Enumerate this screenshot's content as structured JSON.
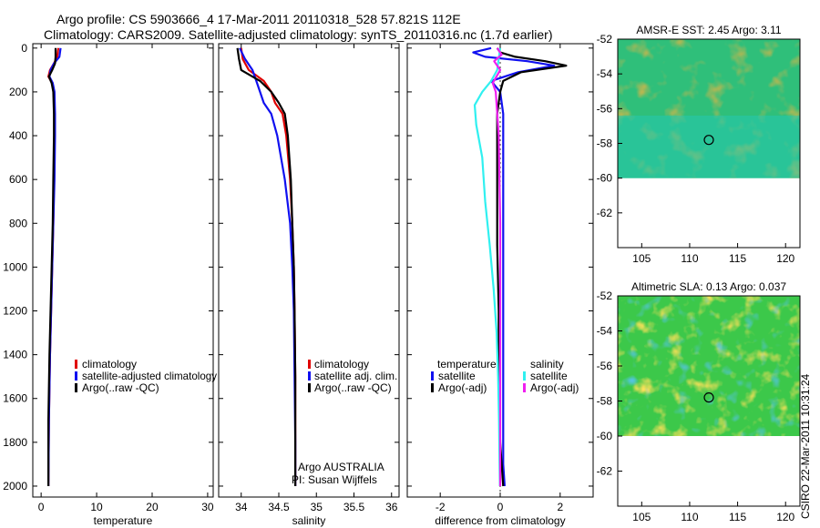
{
  "title_line1": "Argo profile: CS 5903666_4 17-Mar-2011 20110318_528 57.821S 112E",
  "title_line2": "Climatology: CARS2009. Satellite-adjusted climatology: synTS_20110316.nc (1.7d earlier)",
  "side_label": "CSIRO 22-Mar-2011 10:31:24",
  "colors": {
    "red": "#e00000",
    "blue": "#1010f0",
    "black": "#000000",
    "cyan": "#30f0f0",
    "magenta": "#f020f0"
  },
  "chart_data": [
    {
      "type": "line",
      "xlabel": "temperature",
      "xlim": [
        -1.5,
        31
      ],
      "ylim": [
        2050,
        -20
      ],
      "xticks": [
        0,
        10,
        20,
        30
      ],
      "yticks": [
        0,
        200,
        400,
        600,
        800,
        1000,
        1200,
        1400,
        1600,
        1800,
        2000
      ],
      "legend": [
        "climatology",
        "satellite-adjusted climatology",
        "Argo(..raw -QC)"
      ],
      "series": [
        {
          "name": "climatology",
          "color": "red",
          "x": [
            3.1,
            2.9,
            2.3,
            1.6,
            1.3,
            2.0,
            2.3,
            2.4,
            2.4,
            2.3,
            2.2,
            2.0,
            1.8,
            1.6,
            1.4,
            1.3
          ],
          "y": [
            0,
            40,
            70,
            100,
            130,
            160,
            200,
            300,
            400,
            600,
            800,
            1000,
            1200,
            1400,
            1700,
            2000
          ]
        },
        {
          "name": "satellite-adjusted climatology",
          "color": "blue",
          "x": [
            3.5,
            3.3,
            2.3,
            1.7,
            1.5,
            2.1,
            2.4,
            2.5,
            2.5,
            2.4,
            2.2,
            2.0,
            1.8,
            1.6,
            1.4,
            1.3
          ],
          "y": [
            0,
            40,
            70,
            100,
            130,
            160,
            200,
            300,
            400,
            600,
            800,
            1000,
            1200,
            1400,
            1700,
            2000
          ]
        },
        {
          "name": "Argo(..raw -QC)",
          "color": "black",
          "x": [
            2.6,
            2.6,
            2.5,
            2.0,
            1.4,
            1.9,
            2.2,
            2.3,
            2.3,
            2.2,
            2.1,
            1.9,
            1.7,
            1.5,
            1.3,
            1.3
          ],
          "y": [
            0,
            40,
            70,
            100,
            130,
            160,
            200,
            300,
            400,
            600,
            800,
            1000,
            1200,
            1400,
            1700,
            2000
          ]
        }
      ]
    },
    {
      "type": "line",
      "xlabel": "salinity",
      "xlim": [
        33.7,
        36.1
      ],
      "ylim": [
        2050,
        -20
      ],
      "xticks": [
        34,
        34.5,
        35,
        35.5,
        36
      ],
      "xticklabels": [
        "34",
        "34.5",
        "35",
        "35.5",
        "36"
      ],
      "legend": [
        "climatology",
        "satellite adj. clim.",
        "Argo(..raw -QC)"
      ],
      "annotation": [
        "Argo AUSTRALIA",
        "PI: Susan Wijffels"
      ],
      "series": [
        {
          "name": "climatology",
          "color": "red",
          "x": [
            34.0,
            34.02,
            34.1,
            34.3,
            34.4,
            34.45,
            34.55,
            34.6,
            34.65,
            34.68,
            34.7,
            34.71,
            34.72,
            34.72,
            34.72
          ],
          "y": [
            0,
            50,
            100,
            150,
            200,
            250,
            300,
            400,
            600,
            800,
            1000,
            1200,
            1500,
            1800,
            2000
          ]
        },
        {
          "name": "satellite adj. clim.",
          "color": "blue",
          "x": [
            33.98,
            34.05,
            34.15,
            34.2,
            34.25,
            34.3,
            34.4,
            34.48,
            34.58,
            34.65,
            34.68,
            34.7,
            34.71,
            34.72,
            34.72
          ],
          "y": [
            0,
            50,
            100,
            150,
            200,
            250,
            300,
            400,
            600,
            800,
            1000,
            1200,
            1500,
            1800,
            2000
          ]
        },
        {
          "name": "Argo(..raw -QC)",
          "color": "black",
          "x": [
            33.95,
            33.97,
            34.0,
            34.25,
            34.4,
            34.5,
            34.58,
            34.62,
            34.66,
            34.68,
            34.7,
            34.71,
            34.72,
            34.72,
            34.72
          ],
          "y": [
            0,
            50,
            100,
            150,
            200,
            250,
            300,
            400,
            600,
            800,
            1000,
            1200,
            1500,
            1800,
            2000
          ]
        }
      ]
    },
    {
      "type": "line",
      "xlabel": "difference from climatology",
      "xlim": [
        -3.1,
        3.1
      ],
      "ylim": [
        2050,
        -20
      ],
      "xticks": [
        -2,
        0,
        2
      ],
      "legend_temperature_title": "temperature",
      "legend_salinity_title": "salinity",
      "legend_temperature": [
        "satellite",
        "Argo(-adj)"
      ],
      "legend_salinity": [
        "satellite",
        "Argo(-adj)"
      ],
      "series": [
        {
          "name": "temperature satellite",
          "color": "blue",
          "x": [
            -0.3,
            -0.9,
            -0.5,
            0.9,
            1.8,
            0.6,
            -0.3,
            0.0,
            0.1,
            0.1,
            0.1,
            0.1,
            0.1,
            0.1,
            0.1,
            0.15
          ],
          "y": [
            0,
            20,
            40,
            60,
            80,
            110,
            150,
            200,
            300,
            600,
            900,
            1200,
            1500,
            1800,
            1900,
            2000
          ]
        },
        {
          "name": "temperature Argo(-adj)",
          "color": "black",
          "x": [
            -0.1,
            0.0,
            0.5,
            1.5,
            2.2,
            0.7,
            0.1,
            0.0,
            -0.1,
            -0.1,
            -0.1,
            -0.05,
            -0.05,
            0.0,
            0.05,
            0.1
          ],
          "y": [
            0,
            20,
            40,
            60,
            80,
            110,
            150,
            200,
            300,
            600,
            900,
            1200,
            1500,
            1800,
            1900,
            2000
          ]
        },
        {
          "name": "salinity satellite",
          "color": "cyan",
          "x": [
            0.0,
            -0.1,
            -0.3,
            -0.6,
            -0.85,
            -0.8,
            -0.6,
            -0.5,
            -0.35,
            -0.22,
            -0.12,
            -0.07,
            -0.04,
            -0.02,
            -0.01
          ],
          "y": [
            0,
            100,
            150,
            200,
            260,
            350,
            500,
            700,
            900,
            1100,
            1300,
            1500,
            1700,
            1900,
            2000
          ]
        },
        {
          "name": "salinity Argo(-adj)",
          "color": "magenta",
          "x": [
            -0.1,
            0.05,
            -0.2,
            0.0,
            -0.25,
            -0.15,
            -0.05,
            0.0,
            0.0,
            0.0,
            0.0
          ],
          "y": [
            0,
            30,
            60,
            100,
            160,
            200,
            400,
            800,
            1200,
            1600,
            2000
          ]
        }
      ]
    },
    {
      "type": "heatmap",
      "title": "AMSR-E SST: 2.45 Argo: 3.11",
      "xlim": [
        102.5,
        121.5
      ],
      "ylim": [
        -64,
        -52
      ],
      "xticks": [
        105,
        110,
        115,
        120
      ],
      "yticks": [
        -52,
        -54,
        -56,
        -58,
        -60,
        -62
      ],
      "marker": {
        "lon": 112,
        "lat": -57.8
      }
    },
    {
      "type": "heatmap",
      "title": "Altimetric SLA: 0.13 Argo: 0.037",
      "xlim": [
        102.5,
        121.5
      ],
      "ylim": [
        -64,
        -52
      ],
      "xticks": [
        105,
        110,
        115,
        120
      ],
      "yticks": [
        -52,
        -54,
        -56,
        -58,
        -60,
        -62
      ],
      "marker": {
        "lon": 112,
        "lat": -57.8
      }
    }
  ]
}
